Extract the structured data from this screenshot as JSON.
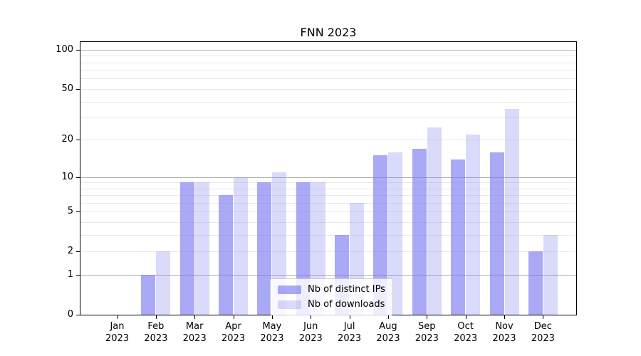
{
  "title": "FNN 2023",
  "legend": {
    "items": [
      {
        "label": "Nb of distinct IPs",
        "color": "rgba(123,123,240,0.65)"
      },
      {
        "label": "Nb of downloads",
        "color": "rgba(123,123,240,0.28)"
      }
    ]
  },
  "axes": {
    "y_ticks": [
      {
        "value": 0,
        "label": "0",
        "grid": "none"
      },
      {
        "value": 1,
        "label": "1",
        "grid": "major"
      },
      {
        "value": 2,
        "label": "2",
        "grid": "minor"
      },
      {
        "value": 5,
        "label": "5",
        "grid": "minor"
      },
      {
        "value": 10,
        "label": "10",
        "grid": "major"
      },
      {
        "value": 20,
        "label": "20",
        "grid": "minor"
      },
      {
        "value": 50,
        "label": "50",
        "grid": "minor"
      },
      {
        "value": 100,
        "label": "100",
        "grid": "major"
      }
    ],
    "minor_grid_values": [
      3,
      4,
      6,
      7,
      8,
      9,
      30,
      40,
      60,
      70,
      80,
      90
    ],
    "x_tick_months": [
      "Jan",
      "Feb",
      "Mar",
      "Apr",
      "May",
      "Jun",
      "Jul",
      "Aug",
      "Sep",
      "Oct",
      "Nov",
      "Dec"
    ],
    "x_tick_year": "2023"
  },
  "chart_data": {
    "type": "bar",
    "title": "FNN 2023",
    "categories": [
      "Jan 2023",
      "Feb 2023",
      "Mar 2023",
      "Apr 2023",
      "May 2023",
      "Jun 2023",
      "Jul 2023",
      "Aug 2023",
      "Sep 2023",
      "Oct 2023",
      "Nov 2023",
      "Dec 2023"
    ],
    "series": [
      {
        "name": "Nb of distinct IPs",
        "values": [
          0,
          1,
          9,
          7,
          9,
          9,
          3,
          15,
          17,
          14,
          16,
          2
        ],
        "color": "rgba(123,123,240,0.65)"
      },
      {
        "name": "Nb of downloads",
        "values": [
          0,
          2,
          9,
          10,
          11,
          9,
          6,
          16,
          25,
          22,
          35,
          3
        ],
        "color": "rgba(123,123,240,0.28)"
      }
    ],
    "yscale": "log10(1+x)",
    "y_tick_values": [
      0,
      1,
      2,
      5,
      10,
      20,
      50,
      100
    ],
    "ylim": [
      0,
      118
    ],
    "xlabel": "",
    "ylabel": "",
    "legend_position": "lower center",
    "grid": true
  }
}
